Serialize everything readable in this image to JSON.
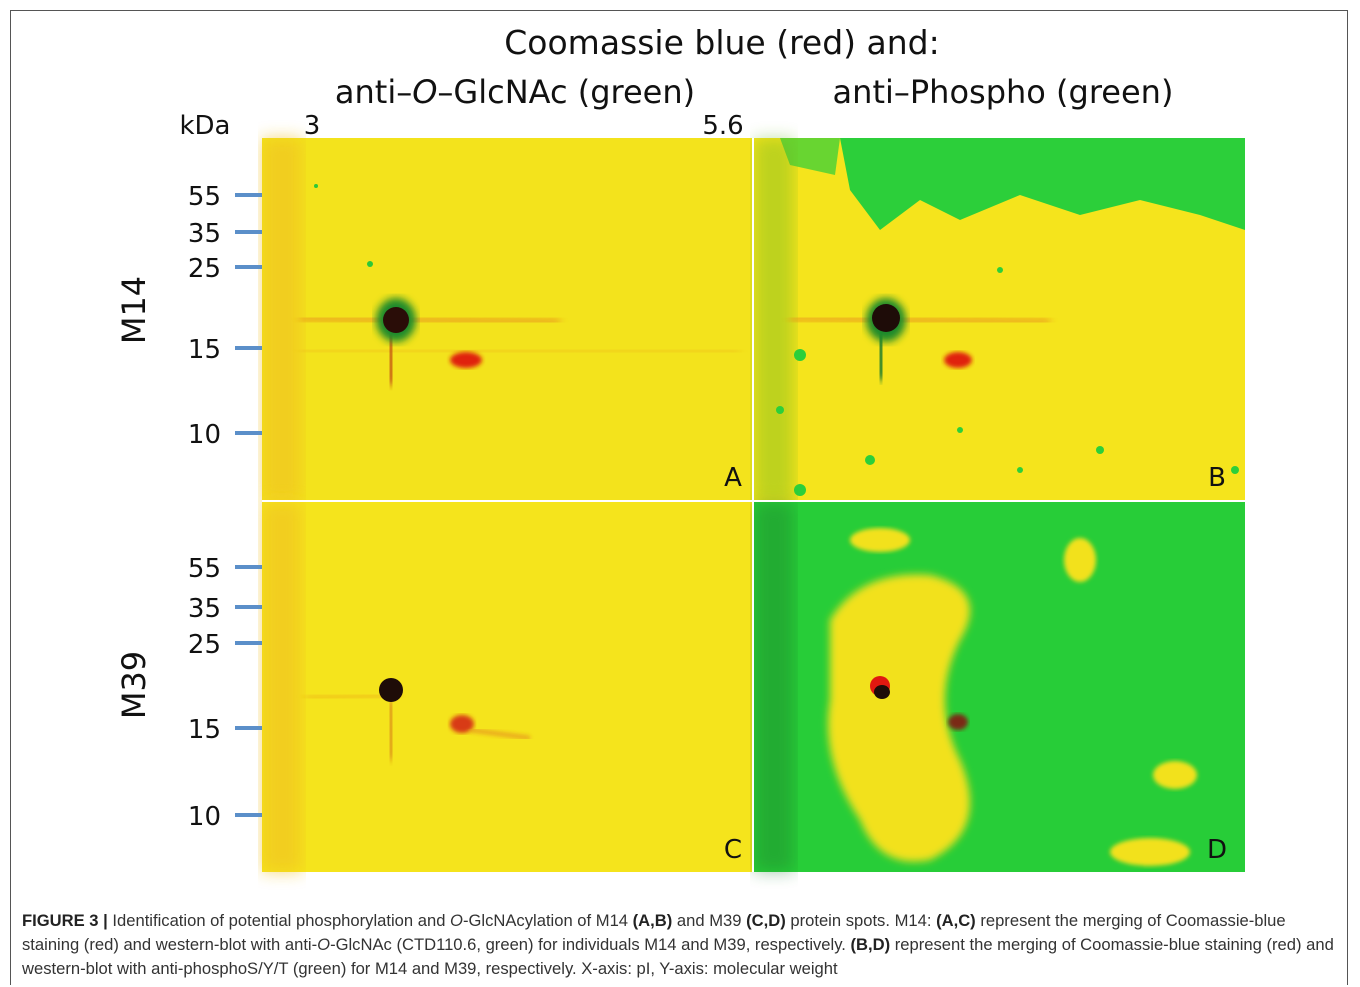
{
  "figure": {
    "title": "Coomassie blue (red) and:",
    "columns": [
      {
        "segments": [
          {
            "text": "anti–"
          },
          {
            "text": "O",
            "style": "italic"
          },
          {
            "text": "–GlcNAc (green)"
          }
        ]
      },
      {
        "segments": [
          {
            "text": "anti–Phospho (green)"
          }
        ]
      }
    ],
    "y_unit": "kDa",
    "ph_start": "3",
    "ph_end": "5.6",
    "rows": [
      {
        "label": "M14",
        "markers": [
          "55",
          "35",
          "25",
          "15",
          "10"
        ],
        "panels": [
          "A",
          "B"
        ]
      },
      {
        "label": "M39",
        "markers": [
          "55",
          "35",
          "25",
          "15",
          "10"
        ],
        "panels": [
          "C",
          "D"
        ]
      }
    ]
  },
  "caption": {
    "segments": [
      {
        "text": "FIGURE 3 |",
        "style": "bold"
      },
      {
        "text": " Identification of potential phosphorylation and "
      },
      {
        "text": "O",
        "style": "italic"
      },
      {
        "text": "-GlcNAcylation of M14 "
      },
      {
        "text": "(A,B)",
        "style": "bold"
      },
      {
        "text": " and M39 "
      },
      {
        "text": "(C,D)",
        "style": "bold"
      },
      {
        "text": " protein spots. M14: "
      },
      {
        "text": "(A,C)",
        "style": "bold"
      },
      {
        "text": " represent the merging of Coomassie-blue staining (red) and western-blot with anti-"
      },
      {
        "text": "O",
        "style": "italic"
      },
      {
        "text": "-GlcNAc (CTD110.6, green) for individuals M14 and M39, respectively. "
      },
      {
        "text": "(B,D)",
        "style": "bold"
      },
      {
        "text": " represent the merging of Coomassie-blue staining (red) and western-blot with anti-phosphoS/Y/T (green) for M14 and M39, respectively. X-axis: pI, Y-axis: molecular weight"
      }
    ]
  }
}
